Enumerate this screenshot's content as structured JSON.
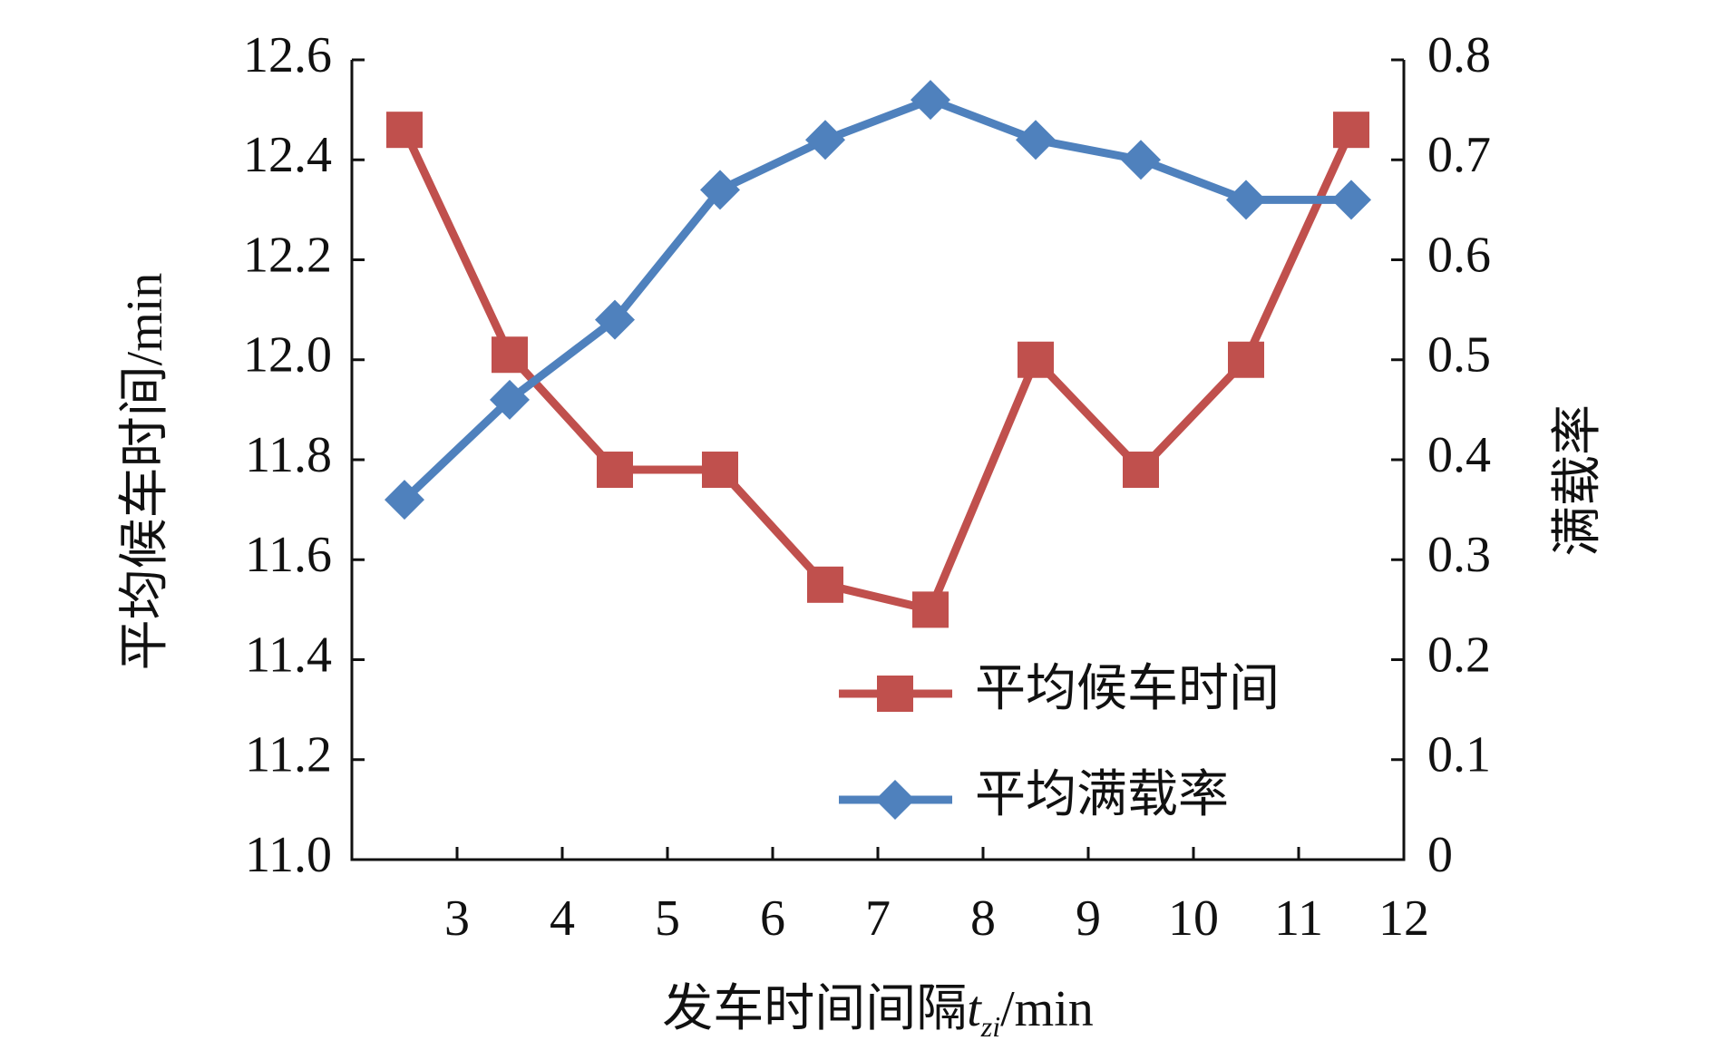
{
  "chart_data": {
    "type": "line",
    "x_label": "发车时间间隔",
    "x_label_symbol": "t",
    "x_label_subscript": "zi",
    "x_label_unit": "/min",
    "y_label": "平均候车时间/min",
    "y2_label": "满载率",
    "x": [
      2.5,
      3.5,
      4.5,
      5.5,
      6.5,
      7.5,
      8.5,
      9.5,
      10.5,
      11.5
    ],
    "xlim": [
      2,
      12
    ],
    "xticks": [
      3,
      4,
      5,
      6,
      7,
      8,
      9,
      10,
      11,
      12
    ],
    "ylim": [
      11.0,
      12.6
    ],
    "yticks": [
      {
        "value": 11.0,
        "label": "11.0"
      },
      11.2,
      11.4,
      11.6,
      11.8,
      {
        "value": 12.0,
        "label": "12.0"
      },
      12.2,
      12.4,
      12.6
    ],
    "y2lim": [
      0,
      0.8
    ],
    "y2ticks": [
      0,
      0.1,
      0.2,
      0.3,
      0.4,
      0.5,
      0.6,
      0.7,
      0.8
    ],
    "legend": "lower right",
    "series": [
      {
        "name": "平均候车时间",
        "color": "#c0504d",
        "marker": "square",
        "values": [
          12.46,
          12.01,
          11.78,
          11.78,
          11.55,
          11.5,
          12.0,
          11.78,
          12.0,
          12.46
        ]
      },
      {
        "name": "平均满载率",
        "color": "#4f81bd",
        "marker": "diamond",
        "axis": "y2",
        "values": [
          0.36,
          0.46,
          0.54,
          0.67,
          0.72,
          0.76,
          0.72,
          0.7,
          0.66,
          0.66
        ]
      }
    ]
  }
}
